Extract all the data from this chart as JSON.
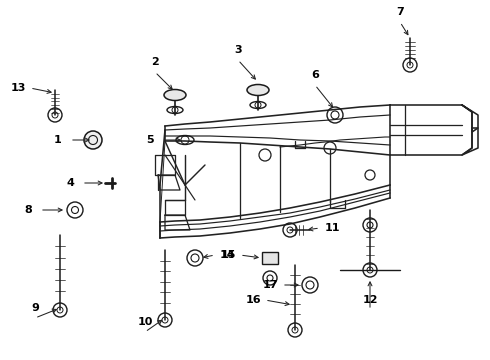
{
  "bg_color": "#ffffff",
  "fig_width": 4.9,
  "fig_height": 3.6,
  "dpi": 100
}
